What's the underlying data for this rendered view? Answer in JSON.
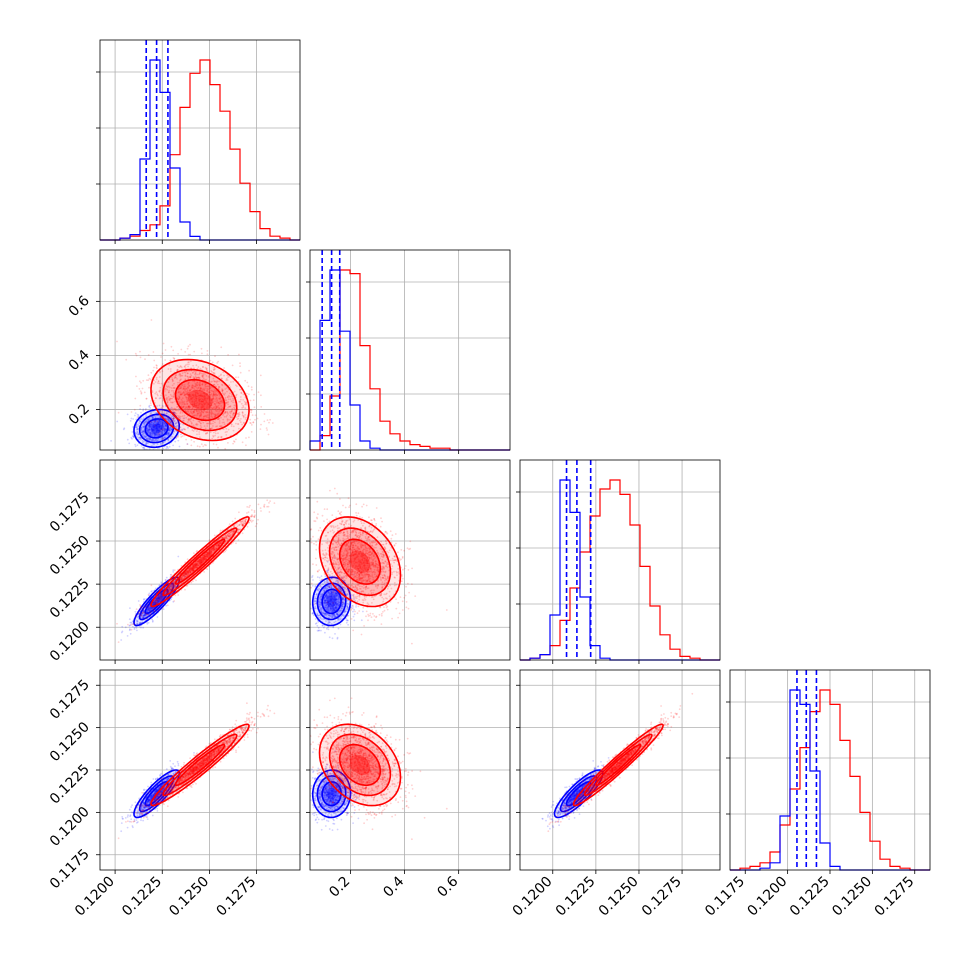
{
  "chart_data": {
    "type": "corner",
    "series": [
      {
        "color": "#0000ff",
        "mean": [
          0.1222,
          0.13,
          0.1215,
          0.1211
        ],
        "sd": [
          0.0006,
          0.035,
          0.0007,
          0.0007
        ],
        "quantiles": [
          [
            0.12165,
            0.1222,
            0.1228
          ],
          [
            0.095,
            0.13,
            0.16
          ],
          [
            0.1208,
            0.1214,
            0.1222
          ],
          [
            0.12055,
            0.1211,
            0.1217
          ]
        ]
      },
      {
        "color": "#ff0000",
        "mean": [
          0.1245,
          0.235,
          0.1238,
          0.1228
        ],
        "sd": [
          0.0013,
          0.075,
          0.0013,
          0.0012
        ]
      }
    ],
    "histograms": [
      {
        "edges": [
          0.1192,
          0.1298
        ],
        "blue": [
          0,
          0,
          1,
          3,
          45,
          100,
          82,
          40,
          10,
          2,
          0,
          0,
          0,
          0,
          0,
          0,
          0,
          0,
          0,
          0
        ],
        "red": [
          0,
          0,
          1,
          2,
          5,
          8,
          18,
          45,
          70,
          88,
          95,
          82,
          68,
          48,
          30,
          15,
          6,
          2,
          1,
          0
        ]
      },
      {
        "edges": [
          0.05,
          0.79
        ],
        "blue": [
          5,
          72,
          100,
          66,
          25,
          5,
          1,
          0,
          0,
          0,
          0,
          0,
          0,
          0,
          0,
          0,
          0,
          0,
          0,
          0
        ],
        "red": [
          0,
          8,
          30,
          100,
          98,
          58,
          34,
          16,
          9,
          5,
          3,
          2,
          1,
          1,
          0,
          0,
          0,
          0,
          0,
          0
        ]
      },
      {
        "edges": [
          0.1181,
          0.1297
        ],
        "blue": [
          0,
          1,
          3,
          25,
          100,
          82,
          35,
          8,
          1,
          0,
          0,
          0,
          0,
          0,
          0,
          0,
          0,
          0,
          0,
          0
        ],
        "red": [
          0,
          1,
          3,
          8,
          22,
          40,
          60,
          80,
          95,
          100,
          92,
          75,
          52,
          30,
          14,
          6,
          2,
          1,
          0,
          0
        ]
      },
      {
        "edges": [
          0.1166,
          0.1284
        ],
        "blue": [
          0,
          0,
          0,
          1,
          4,
          30,
          100,
          92,
          55,
          15,
          2,
          0,
          0,
          0,
          0,
          0,
          0,
          0,
          0,
          0
        ],
        "red": [
          0,
          1,
          2,
          4,
          10,
          25,
          45,
          68,
          88,
          100,
          92,
          72,
          52,
          32,
          16,
          6,
          2,
          1,
          0,
          0
        ]
      }
    ],
    "axis_ranges": [
      [
        0.1192,
        0.1298
      ],
      [
        0.05,
        0.79
      ],
      [
        0.1181,
        0.1297
      ],
      [
        0.1166,
        0.1284
      ]
    ],
    "correlations": {
      "1-0": [
        0.12,
        -0.25
      ],
      "2-0": [
        0.88,
        0.97
      ],
      "2-1": [
        0.05,
        -0.3
      ],
      "3-0": [
        0.85,
        0.96
      ],
      "3-1": [
        0.03,
        -0.3
      ],
      "3-2": [
        0.85,
        0.97
      ]
    },
    "x_ticks": [
      [
        "0.1200",
        "0.1225",
        "0.1250",
        "0.1275"
      ],
      [
        "0.2",
        "0.4",
        "0.6"
      ],
      [
        "0.1200",
        "0.1225",
        "0.1250",
        "0.1275"
      ],
      [
        "0.1175",
        "0.1200",
        "0.1225",
        "0.1250",
        "0.1275"
      ]
    ],
    "y_ticks": {
      "1": [
        "0.2",
        "0.4",
        "0.6"
      ],
      "2": [
        "0.1200",
        "0.1225",
        "0.1250",
        "0.1275"
      ],
      "3": [
        "0.1175",
        "0.1200",
        "0.1225",
        "0.1250",
        "0.1275"
      ]
    },
    "grid": true,
    "contour_levels_sigma": [
      0.5,
      1.0,
      1.5,
      2.0
    ],
    "title": "",
    "xlabel": "",
    "ylabel": ""
  }
}
